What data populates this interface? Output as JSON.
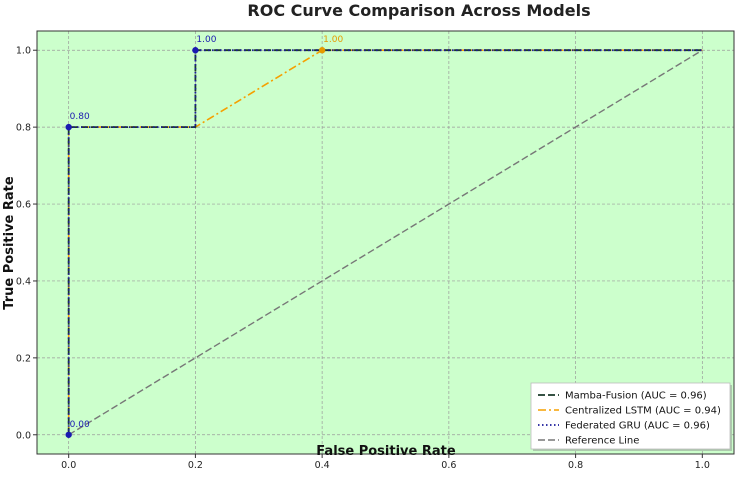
{
  "chart_data": {
    "type": "line",
    "title": "ROC Curve Comparison Across Models",
    "xlabel": "False Positive Rate",
    "ylabel": "True Positive Rate",
    "xlim": [
      -0.05,
      1.05
    ],
    "ylim": [
      -0.05,
      1.05
    ],
    "xticks": [
      "0.0",
      "0.2",
      "0.4",
      "0.6",
      "0.8",
      "1.0"
    ],
    "yticks": [
      "0.0",
      "0.2",
      "0.4",
      "0.6",
      "0.8",
      "1.0"
    ],
    "grid": true,
    "legend_position": "lower-right",
    "background_color": "#ccffcc",
    "series": [
      {
        "name": "Mamba-Fusion (AUC = 0.96)",
        "style": "dashed",
        "color": "#1a3a2a",
        "x": [
          0.0,
          0.0,
          0.2,
          0.2,
          1.0
        ],
        "y": [
          0.0,
          0.8,
          0.8,
          1.0,
          1.0
        ]
      },
      {
        "name": "Centralized LSTM (AUC = 0.94)",
        "style": "dashdot",
        "color": "#f5a000",
        "x": [
          0.0,
          0.0,
          0.2,
          0.4,
          1.0
        ],
        "y": [
          0.0,
          0.8,
          0.8,
          1.0,
          1.0
        ]
      },
      {
        "name": "Federated GRU (AUC = 0.96)",
        "style": "dotted",
        "color": "#1a1a9a",
        "x": [
          0.0,
          0.0,
          0.2,
          0.2,
          1.0
        ],
        "y": [
          0.0,
          0.8,
          0.8,
          1.0,
          1.0
        ]
      },
      {
        "name": "Reference Line",
        "style": "dashed",
        "color": "#777777",
        "x": [
          0.0,
          1.0
        ],
        "y": [
          0.0,
          1.0
        ]
      }
    ],
    "annotations": [
      {
        "x": 0.0,
        "y": 0.0,
        "text": "0.00",
        "color": "#1a1ab0"
      },
      {
        "x": 0.0,
        "y": 0.8,
        "text": "0.80",
        "color": "#1a1ab0"
      },
      {
        "x": 0.2,
        "y": 1.0,
        "text": "1.00",
        "color": "#1a1ab0"
      },
      {
        "x": 0.4,
        "y": 1.0,
        "text": "1.00",
        "color": "#e69a00"
      }
    ]
  }
}
